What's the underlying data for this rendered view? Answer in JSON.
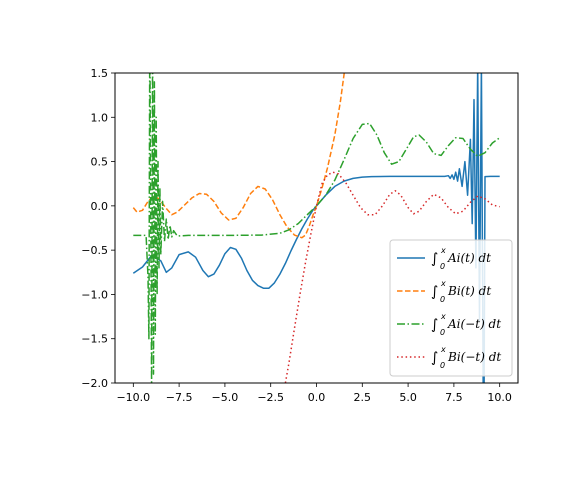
{
  "chart_data": {
    "type": "line",
    "title": "",
    "xlabel": "",
    "ylabel": "",
    "xlim": [
      -11.0,
      11.0
    ],
    "ylim": [
      -2.0,
      1.5
    ],
    "xticks": [
      -10.0,
      -7.5,
      -5.0,
      -2.5,
      0.0,
      2.5,
      5.0,
      7.5,
      10.0
    ],
    "xtick_labels": [
      "−10.0",
      "−7.5",
      "−5.0",
      "−2.5",
      "0.0",
      "2.5",
      "5.0",
      "7.5",
      "10.0"
    ],
    "yticks": [
      1.5,
      1.0,
      0.5,
      0.0,
      -0.5,
      -1.0,
      -1.5,
      -2.0
    ],
    "ytick_labels": [
      "1.5",
      "1.0",
      "0.5",
      "0.0",
      "−0.5",
      "−1.0",
      "−1.5",
      "−2.0"
    ],
    "grid": false,
    "legend": "lower-right",
    "series": [
      {
        "name": "∫₀ˣ Ai(t) dt",
        "legend": {
          "upper": "0",
          "lim": "x",
          "body": "Ai(t) dt"
        },
        "color": "#1f77b4",
        "style": "solid",
        "points": [
          [
            -10,
            -0.76
          ],
          [
            -9.5,
            -0.69
          ],
          [
            -9,
            -0.56
          ],
          [
            -8.5,
            -0.62
          ],
          [
            -8.2,
            -0.75
          ],
          [
            -7.9,
            -0.7
          ],
          [
            -7.5,
            -0.55
          ],
          [
            -7,
            -0.52
          ],
          [
            -6.6,
            -0.58
          ],
          [
            -6.2,
            -0.73
          ],
          [
            -5.9,
            -0.8
          ],
          [
            -5.6,
            -0.77
          ],
          [
            -5.3,
            -0.67
          ],
          [
            -5,
            -0.54
          ],
          [
            -4.7,
            -0.47
          ],
          [
            -4.4,
            -0.49
          ],
          [
            -4.1,
            -0.59
          ],
          [
            -3.8,
            -0.73
          ],
          [
            -3.5,
            -0.84
          ],
          [
            -3.2,
            -0.9
          ],
          [
            -2.9,
            -0.93
          ],
          [
            -2.6,
            -0.93
          ],
          [
            -2.3,
            -0.87
          ],
          [
            -2,
            -0.77
          ],
          [
            -1.7,
            -0.65
          ],
          [
            -1.4,
            -0.51
          ],
          [
            -1.1,
            -0.38
          ],
          [
            -0.8,
            -0.26
          ],
          [
            -0.5,
            -0.15
          ],
          [
            -0.2,
            -0.05
          ],
          [
            0,
            0
          ],
          [
            0.5,
            0.12
          ],
          [
            1,
            0.22
          ],
          [
            1.5,
            0.28
          ],
          [
            2,
            0.31
          ],
          [
            2.5,
            0.325
          ],
          [
            3,
            0.33
          ],
          [
            4,
            0.333
          ],
          [
            5,
            0.333
          ],
          [
            6,
            0.333
          ],
          [
            7,
            0.333
          ],
          [
            7.2,
            0.34
          ],
          [
            7.3,
            0.31
          ],
          [
            7.4,
            0.35
          ],
          [
            7.5,
            0.3
          ],
          [
            7.6,
            0.38
          ],
          [
            7.7,
            0.28
          ],
          [
            7.8,
            0.42
          ],
          [
            7.95,
            0.22
          ],
          [
            8.1,
            0.5
          ],
          [
            8.25,
            0.12
          ],
          [
            8.4,
            0.75
          ],
          [
            8.5,
            -0.2
          ],
          [
            8.6,
            1.2
          ],
          [
            8.7,
            -0.7
          ],
          [
            8.8,
            1.6
          ],
          [
            8.9,
            -1.3
          ],
          [
            9.0,
            1.6
          ],
          [
            9.1,
            -2.1
          ],
          [
            9.15,
            -2.1
          ],
          [
            9.2,
            0.33
          ],
          [
            9.5,
            0.333
          ],
          [
            10,
            0.333
          ]
        ]
      },
      {
        "name": "∫₀ˣ Bi(t) dt",
        "legend": {
          "upper": "0",
          "lim": "x",
          "body": "Bi(t) dt"
        },
        "color": "#ff7f0e",
        "style": "dashed",
        "points": [
          [
            -10,
            -0.02
          ],
          [
            -9.8,
            -0.07
          ],
          [
            -9.5,
            -0.05
          ],
          [
            -9.2,
            0.05
          ],
          [
            -8.9,
            0.11
          ],
          [
            -8.6,
            0.08
          ],
          [
            -8.2,
            -0.03
          ],
          [
            -7.9,
            -0.1
          ],
          [
            -7.6,
            -0.07
          ],
          [
            -7.2,
            0.01
          ],
          [
            -6.8,
            0.09
          ],
          [
            -6.4,
            0.14
          ],
          [
            -6,
            0.13
          ],
          [
            -5.6,
            0.05
          ],
          [
            -5.2,
            -0.08
          ],
          [
            -4.8,
            -0.16
          ],
          [
            -4.4,
            -0.14
          ],
          [
            -4,
            -0.02
          ],
          [
            -3.6,
            0.14
          ],
          [
            -3.2,
            0.22
          ],
          [
            -2.8,
            0.19
          ],
          [
            -2.4,
            0.07
          ],
          [
            -2,
            -0.1
          ],
          [
            -1.6,
            -0.24
          ],
          [
            -1.2,
            -0.33
          ],
          [
            -0.8,
            -0.36
          ],
          [
            -0.6,
            -0.33
          ],
          [
            -0.4,
            -0.23
          ],
          [
            -0.2,
            -0.11
          ],
          [
            0,
            0
          ],
          [
            0.3,
            0.2
          ],
          [
            0.6,
            0.43
          ],
          [
            1,
            0.8
          ],
          [
            1.3,
            1.17
          ],
          [
            1.5,
            1.48
          ],
          [
            1.55,
            1.56
          ]
        ]
      },
      {
        "name": "∫₀ˣ Ai(−t) dt",
        "legend": {
          "upper": "0",
          "lim": "x",
          "body": "Ai(−t) dt"
        },
        "color": "#2ca02c",
        "style": "dashdot",
        "points": [
          [
            -10,
            -0.333
          ],
          [
            -9.3,
            -0.333
          ],
          [
            -9.2,
            -0.8
          ],
          [
            -9.15,
            -1.5
          ],
          [
            -9.1,
            2.0
          ],
          [
            -9.0,
            -2.05
          ],
          [
            -8.95,
            1.8
          ],
          [
            -8.9,
            -1.9
          ],
          [
            -8.85,
            1.4
          ],
          [
            -8.8,
            -1.45
          ],
          [
            -8.75,
            1.0
          ],
          [
            -8.7,
            -1.0
          ],
          [
            -8.65,
            0.5
          ],
          [
            -8.6,
            -0.7
          ],
          [
            -8.55,
            0.2
          ],
          [
            -8.5,
            -0.55
          ],
          [
            -8.4,
            0.05
          ],
          [
            -8.3,
            -0.4
          ],
          [
            -8.2,
            -0.15
          ],
          [
            -8.1,
            -0.38
          ],
          [
            -8,
            -0.22
          ],
          [
            -7.9,
            -0.35
          ],
          [
            -7.8,
            -0.28
          ],
          [
            -7.6,
            -0.34
          ],
          [
            -7,
            -0.333
          ],
          [
            -5,
            -0.333
          ],
          [
            -3,
            -0.33
          ],
          [
            -2,
            -0.31
          ],
          [
            -1.5,
            -0.27
          ],
          [
            -1,
            -0.2
          ],
          [
            -0.5,
            -0.1
          ],
          [
            0,
            0
          ],
          [
            0.5,
            0.12
          ],
          [
            1,
            0.29
          ],
          [
            1.5,
            0.52
          ],
          [
            2,
            0.76
          ],
          [
            2.5,
            0.92
          ],
          [
            2.9,
            0.93
          ],
          [
            3.3,
            0.8
          ],
          [
            3.7,
            0.6
          ],
          [
            4.1,
            0.47
          ],
          [
            4.5,
            0.5
          ],
          [
            4.9,
            0.64
          ],
          [
            5.3,
            0.78
          ],
          [
            5.6,
            0.8
          ],
          [
            6,
            0.72
          ],
          [
            6.4,
            0.59
          ],
          [
            6.8,
            0.57
          ],
          [
            7.2,
            0.68
          ],
          [
            7.6,
            0.77
          ],
          [
            8,
            0.76
          ],
          [
            8.4,
            0.64
          ],
          [
            8.8,
            0.56
          ],
          [
            9.2,
            0.6
          ],
          [
            9.6,
            0.71
          ],
          [
            10,
            0.77
          ]
        ]
      },
      {
        "name": "∫₀ˣ Bi(−t) dt",
        "legend": {
          "upper": "0",
          "lim": "x",
          "body": "Bi(−t) dt"
        },
        "color": "#d62728",
        "style": "dotted",
        "points": [
          [
            -1.7,
            -2.0
          ],
          [
            -1.5,
            -1.77
          ],
          [
            -1.2,
            -1.38
          ],
          [
            -0.9,
            -1.0
          ],
          [
            -0.6,
            -0.64
          ],
          [
            -0.3,
            -0.31
          ],
          [
            0,
            0
          ],
          [
            0.3,
            0.25
          ],
          [
            0.6,
            0.35
          ],
          [
            0.9,
            0.38
          ],
          [
            1.2,
            0.36
          ],
          [
            1.6,
            0.26
          ],
          [
            2,
            0.12
          ],
          [
            2.4,
            -0.02
          ],
          [
            2.8,
            -0.1
          ],
          [
            3.2,
            -0.1
          ],
          [
            3.6,
            0.0
          ],
          [
            4,
            0.13
          ],
          [
            4.3,
            0.17
          ],
          [
            4.6,
            0.12
          ],
          [
            5,
            -0.02
          ],
          [
            5.3,
            -0.09
          ],
          [
            5.6,
            -0.06
          ],
          [
            6,
            0.05
          ],
          [
            6.4,
            0.13
          ],
          [
            6.8,
            0.09
          ],
          [
            7.2,
            -0.02
          ],
          [
            7.6,
            -0.09
          ],
          [
            8,
            -0.06
          ],
          [
            8.4,
            0.04
          ],
          [
            8.8,
            0.11
          ],
          [
            9.2,
            0.08
          ],
          [
            9.6,
            0.01
          ],
          [
            10,
            -0.01
          ]
        ]
      }
    ]
  }
}
